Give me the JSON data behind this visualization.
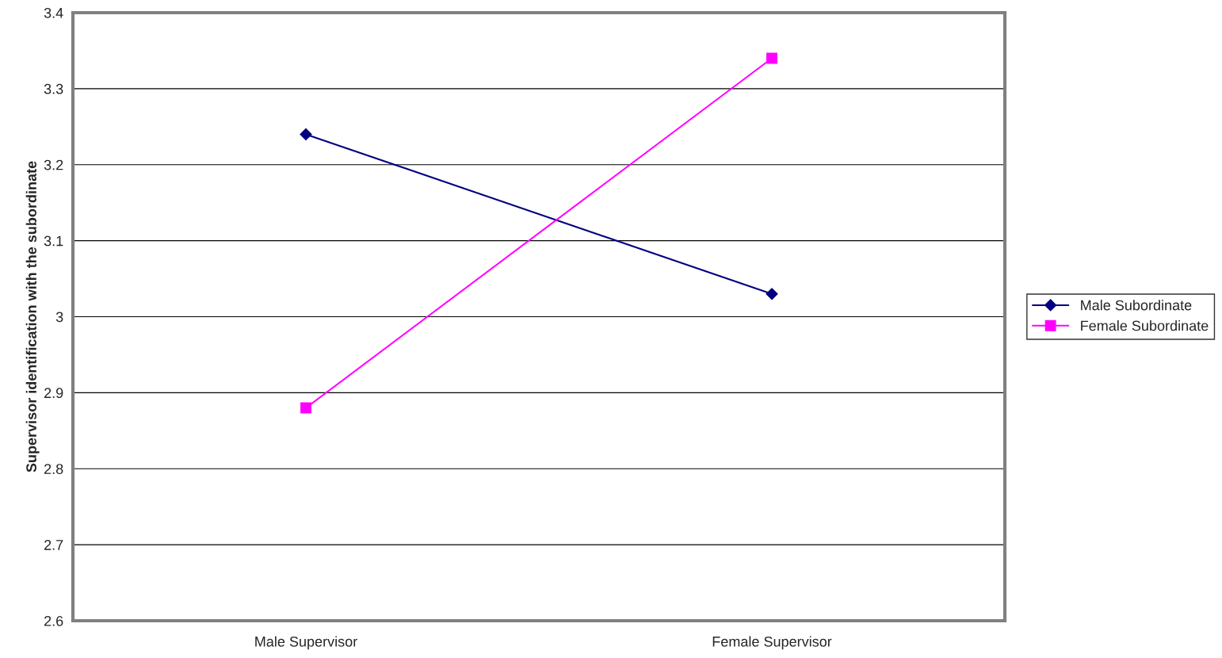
{
  "chart_data": {
    "type": "line",
    "ylabel": "Supervisor identification with the subordinate",
    "categories": [
      "Male Supervisor",
      "Female Supervisor"
    ],
    "series": [
      {
        "name": "Male Subordinate",
        "color": "#000080",
        "marker": "diamond",
        "values": [
          3.24,
          3.03
        ]
      },
      {
        "name": "Female Subordinate",
        "color": "#ff00ff",
        "marker": "square",
        "values": [
          2.88,
          3.34
        ]
      }
    ],
    "ylim": [
      2.6,
      3.4
    ],
    "yticks": [
      2.6,
      2.7,
      2.8,
      2.9,
      3,
      3.1,
      3.2,
      3.3,
      3.4
    ],
    "grid": "y",
    "legend": "right",
    "line_style": "solid"
  }
}
